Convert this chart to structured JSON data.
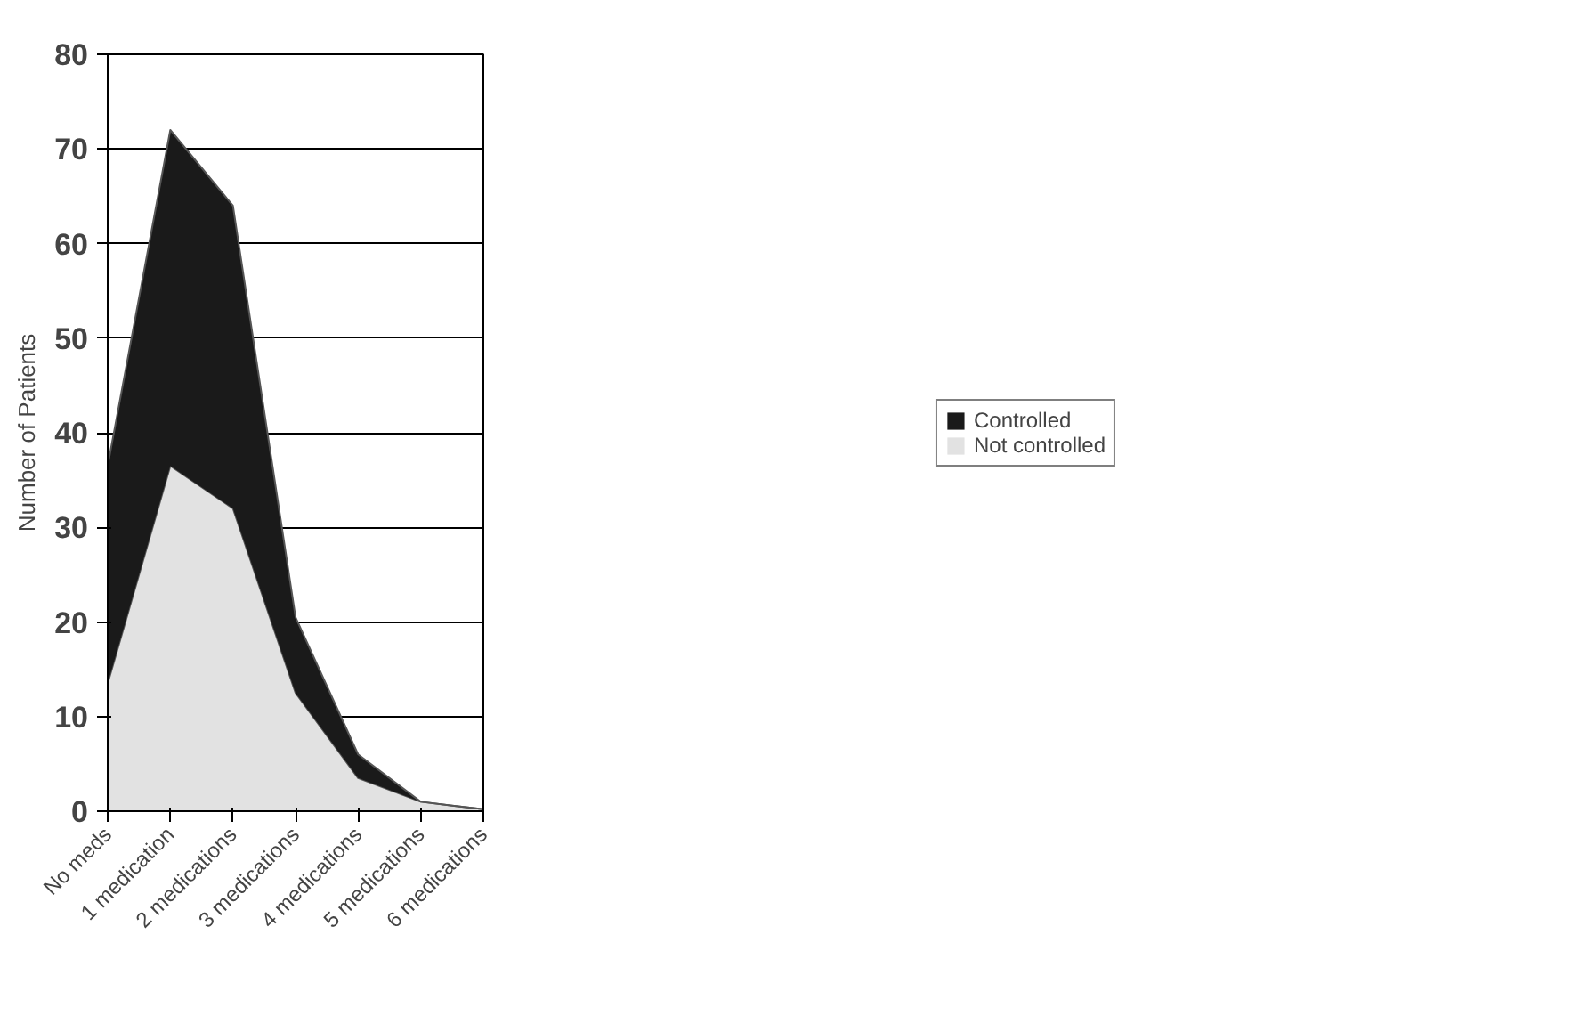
{
  "chart_data": {
    "type": "area",
    "stacked": true,
    "ylabel": "Number of Patients",
    "categories": [
      "No meds",
      "1 medication",
      "2 medications",
      "3 medications",
      "4 medications",
      "5 medications",
      "6 medications"
    ],
    "series": [
      {
        "name": "Not controlled",
        "color": "#e2e2e2",
        "values": [
          13.5,
          36.5,
          32,
          12.5,
          3.5,
          1,
          0.2
        ]
      },
      {
        "name": "Controlled",
        "color": "#1a1a1a",
        "values": [
          23,
          35.5,
          32,
          8,
          2.5,
          0,
          0
        ]
      }
    ],
    "ylim": [
      0,
      80
    ],
    "yticks": [
      0,
      10,
      20,
      30,
      40,
      50,
      60,
      70,
      80
    ],
    "grid": "y",
    "legend": "right"
  }
}
